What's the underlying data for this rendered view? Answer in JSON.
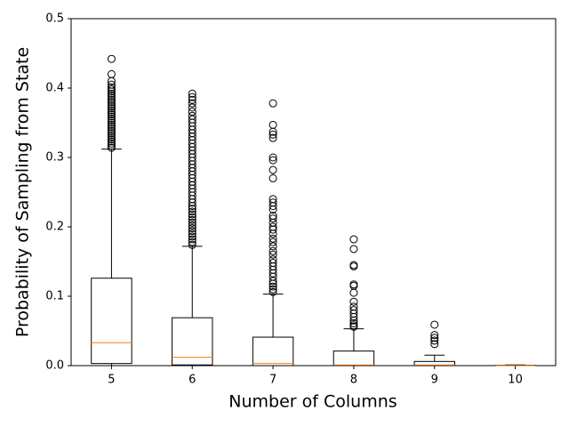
{
  "chart_data": {
    "type": "box",
    "xlabel": "Number of Columns",
    "ylabel": "Probability of Sampling from State",
    "categories": [
      "5",
      "6",
      "7",
      "8",
      "9",
      "10"
    ],
    "median_color": "#ff7f0e",
    "box_color": "#000000",
    "ylim": [
      0,
      0.5
    ],
    "yticks": [
      {
        "value": 0,
        "label": "0.0"
      },
      0.1,
      0.2,
      0.3,
      0.4,
      0.5
    ],
    "boxes": [
      {
        "whislo": 0,
        "q1": 0.003,
        "med": 0.033,
        "q3": 0.126,
        "whishi": 0.312,
        "fliers": [
          0.314,
          0.317,
          0.32,
          0.323,
          0.326,
          0.329,
          0.332,
          0.335,
          0.338,
          0.341,
          0.344,
          0.347,
          0.35,
          0.353,
          0.356,
          0.359,
          0.362,
          0.365,
          0.368,
          0.371,
          0.374,
          0.377,
          0.38,
          0.383,
          0.386,
          0.389,
          0.392,
          0.395,
          0.398,
          0.401,
          0.405,
          0.41,
          0.42,
          0.442
        ]
      },
      {
        "whislo": 0,
        "q1": 0.001,
        "med": 0.012,
        "q3": 0.069,
        "whishi": 0.172,
        "fliers": [
          0.174,
          0.178,
          0.182,
          0.186,
          0.19,
          0.194,
          0.198,
          0.202,
          0.206,
          0.21,
          0.214,
          0.218,
          0.222,
          0.226,
          0.23,
          0.235,
          0.24,
          0.245,
          0.25,
          0.255,
          0.26,
          0.265,
          0.27,
          0.275,
          0.28,
          0.285,
          0.29,
          0.295,
          0.3,
          0.305,
          0.31,
          0.315,
          0.32,
          0.325,
          0.33,
          0.335,
          0.34,
          0.345,
          0.35,
          0.355,
          0.36,
          0.366,
          0.372,
          0.378,
          0.383,
          0.387,
          0.392
        ]
      },
      {
        "whislo": 0,
        "q1": 0,
        "med": 0.003,
        "q3": 0.041,
        "whishi": 0.103,
        "fliers": [
          0.106,
          0.11,
          0.114,
          0.118,
          0.122,
          0.128,
          0.133,
          0.138,
          0.143,
          0.148,
          0.153,
          0.16,
          0.165,
          0.172,
          0.178,
          0.183,
          0.19,
          0.196,
          0.2,
          0.206,
          0.212,
          0.216,
          0.225,
          0.23,
          0.235,
          0.24,
          0.27,
          0.282,
          0.296,
          0.3,
          0.328,
          0.333,
          0.337,
          0.347,
          0.378
        ]
      },
      {
        "whislo": 0,
        "q1": 0,
        "med": 0.001,
        "q3": 0.021,
        "whishi": 0.053,
        "fliers": [
          0.056,
          0.058,
          0.061,
          0.065,
          0.07,
          0.075,
          0.08,
          0.085,
          0.092,
          0.105,
          0.115,
          0.117,
          0.143,
          0.145,
          0.168,
          0.182
        ]
      },
      {
        "whislo": 0,
        "q1": 0,
        "med": 0.001,
        "q3": 0.006,
        "whishi": 0.015,
        "fliers": [
          0.031,
          0.036,
          0.04,
          0.044,
          0.059
        ]
      },
      {
        "whislo": 0,
        "q1": 0,
        "med": 0,
        "q3": 0.0005,
        "whishi": 0.001,
        "fliers": []
      }
    ]
  }
}
